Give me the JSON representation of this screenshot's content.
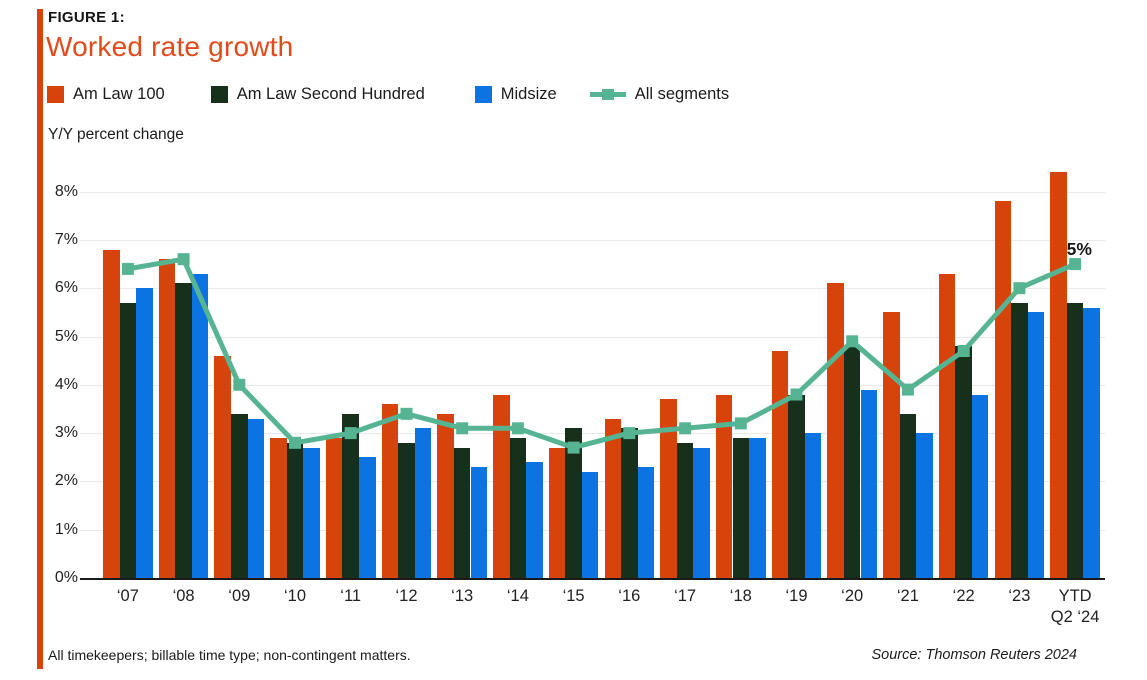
{
  "figure": {
    "kicker": "FIGURE 1:",
    "title": "Worked rate growth",
    "axis_note": "Y/Y percent change",
    "annotation": "6.5%",
    "footnote": "All timekeepers; billable time type; non-contingent matters.",
    "source": "Source: Thomson Reuters 2024"
  },
  "legend": [
    {
      "label": "Am Law 100",
      "color": "#d6430b",
      "type": "square"
    },
    {
      "label": "Am Law Second Hundred",
      "color": "#17301c",
      "type": "square"
    },
    {
      "label": "Midsize",
      "color": "#0c73e3",
      "type": "square"
    },
    {
      "label": "All segments",
      "color": "#56b493",
      "type": "line"
    }
  ],
  "colors": {
    "accent_orange": "#d6430b",
    "title_orange": "#e04b1c",
    "dark_green": "#17301c",
    "blue": "#0c73e3",
    "teal": "#56b493",
    "gridline": "#e9e9e9",
    "axis": "#1a1a1a",
    "text": "#1b1b1b"
  },
  "chart_data": {
    "type": "bar",
    "title": "Worked rate growth",
    "ylabel": "Y/Y percent change",
    "ylim": [
      0,
      8
    ],
    "ytick_labels": [
      "0%",
      "1%",
      "2%",
      "3%",
      "4%",
      "5%",
      "6%",
      "7%",
      "8%"
    ],
    "grid": true,
    "legend_position": "top",
    "categories": [
      "‘07",
      "‘08",
      "‘09",
      "‘10",
      "‘11",
      "‘12",
      "‘13",
      "‘14",
      "‘15",
      "‘16",
      "‘17",
      "‘18",
      "‘19",
      "‘20",
      "‘21",
      "‘22",
      "‘23",
      "YTD\nQ2 ‘24"
    ],
    "series": [
      {
        "name": "Am Law 100",
        "color": "#d6430b",
        "values": [
          6.8,
          6.6,
          4.6,
          2.9,
          2.9,
          3.6,
          3.4,
          3.8,
          2.7,
          3.3,
          3.7,
          3.8,
          4.7,
          6.1,
          5.5,
          6.3,
          7.8,
          8.4
        ]
      },
      {
        "name": "Am Law Second Hundred",
        "color": "#17301c",
        "values": [
          5.7,
          6.1,
          3.4,
          2.8,
          3.4,
          2.8,
          2.7,
          2.9,
          3.1,
          3.1,
          2.8,
          2.9,
          3.8,
          4.8,
          3.4,
          4.8,
          5.7,
          5.7
        ]
      },
      {
        "name": "Midsize",
        "color": "#0c73e3",
        "values": [
          6.0,
          6.3,
          3.3,
          2.7,
          2.5,
          3.1,
          2.3,
          2.4,
          2.2,
          2.3,
          2.7,
          2.9,
          3.0,
          3.9,
          3.0,
          3.8,
          5.5,
          5.6
        ]
      }
    ],
    "line_series": {
      "name": "All segments",
      "color": "#56b493",
      "values": [
        6.4,
        6.6,
        4.0,
        2.8,
        3.0,
        3.4,
        3.1,
        3.1,
        2.7,
        3.0,
        3.1,
        3.2,
        3.8,
        4.9,
        3.9,
        4.7,
        6.0,
        6.5
      ]
    },
    "annotation": {
      "text": "6.5%",
      "series": "All segments",
      "category": "YTD Q2 '24",
      "value": 6.5
    }
  }
}
